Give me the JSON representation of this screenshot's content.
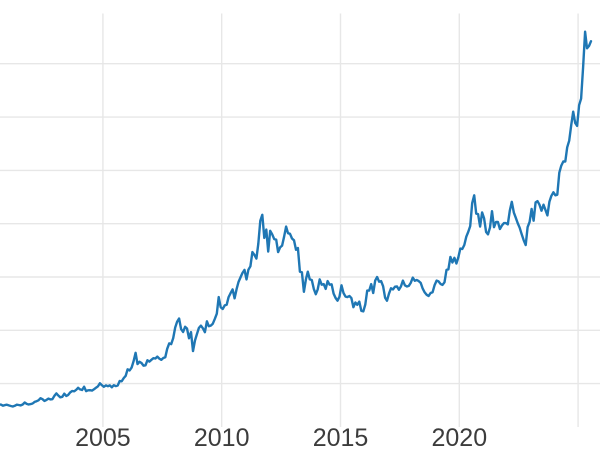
{
  "chart_data": {
    "type": "line",
    "title": "",
    "legend": "none",
    "grid": true,
    "x_axis_range_years": [
      2000.67,
      2025.92
    ],
    "y_axis_range": [
      84,
      3574
    ],
    "x_ticks": [
      {
        "year": 2005,
        "label": "2005"
      },
      {
        "year": 2010,
        "label": "2010"
      },
      {
        "year": 2015,
        "label": "2015"
      },
      {
        "year": 2020,
        "label": "2020"
      }
    ],
    "x_gridline_years": [
      2005,
      2010,
      2015,
      2020,
      2025
    ],
    "y_gridline_values": [
      450,
      900,
      1350,
      1800,
      2250,
      2700,
      3150
    ],
    "series": [
      {
        "name": "",
        "color": "#1f77b4",
        "start_year": 2000,
        "start_month": 8,
        "frequency": "monthly",
        "values": [
          274,
          273,
          264,
          269,
          272,
          266,
          261,
          257,
          263,
          272,
          270,
          266,
          274,
          291,
          279,
          274,
          277,
          282,
          296,
          302,
          309,
          327,
          319,
          304,
          313,
          324,
          317,
          319,
          347,
          368,
          350,
          335,
          339,
          365,
          346,
          355,
          376,
          388,
          385,
          398,
          415,
          401,
          396,
          424,
          387,
          394,
          395,
          391,
          402,
          416,
          427,
          453,
          437,
          423,
          435,
          428,
          435,
          419,
          437,
          429,
          434,
          472,
          470,
          497,
          516,
          571,
          561,
          585,
          640,
          710,
          615,
          634,
          624,
          601,
          605,
          647,
          636,
          651,
          665,
          662,
          678,
          661,
          651,
          666,
          673,
          744,
          790,
          784,
          834,
          924,
          972,
          1000,
          910,
          886,
          930,
          915,
          833,
          885,
          725,
          815,
          870,
          920,
          940,
          917,
          884,
          976,
          935,
          940,
          956,
          996,
          1040,
          1180,
          1095,
          1080,
          1110,
          1116,
          1180,
          1214,
          1245,
          1170,
          1248,
          1308,
          1347,
          1385,
          1410,
          1330,
          1412,
          1440,
          1560,
          1537,
          1505,
          1630,
          1825,
          1875,
          1680,
          1750,
          1565,
          1740,
          1710,
          1670,
          1665,
          1560,
          1600,
          1615,
          1690,
          1775,
          1720,
          1715,
          1675,
          1660,
          1580,
          1595,
          1395,
          1390,
          1225,
          1330,
          1395,
          1330,
          1325,
          1250,
          1205,
          1245,
          1330,
          1285,
          1290,
          1250,
          1315,
          1285,
          1288,
          1210,
          1173,
          1150,
          1185,
          1280,
          1215,
          1185,
          1180,
          1190,
          1172,
          1095,
          1135,
          1115,
          1142,
          1065,
          1060,
          1118,
          1235,
          1235,
          1290,
          1215,
          1320,
          1350,
          1310,
          1315,
          1272,
          1175,
          1150,
          1210,
          1255,
          1245,
          1268,
          1270,
          1242,
          1270,
          1320,
          1280,
          1270,
          1275,
          1302,
          1345,
          1318,
          1325,
          1315,
          1300,
          1252,
          1220,
          1200,
          1190,
          1215,
          1222,
          1282,
          1320,
          1313,
          1292,
          1283,
          1305,
          1410,
          1415,
          1520,
          1472,
          1512,
          1464,
          1515,
          1590,
          1586,
          1620,
          1690,
          1730,
          1780,
          1975,
          2040,
          1885,
          1880,
          1775,
          1895,
          1845,
          1730,
          1710,
          1768,
          1905,
          1770,
          1815,
          1815,
          1755,
          1785,
          1805,
          1805,
          1795,
          1910,
          1985,
          1895,
          1850,
          1805,
          1765,
          1710,
          1660,
          1620,
          1770,
          1815,
          1925,
          1825,
          1980,
          1990,
          1960,
          1910,
          1960,
          1915,
          1870,
          1985,
          2035,
          2065,
          2040,
          2045,
          2230,
          2290,
          2325,
          2325,
          2445,
          2500,
          2630,
          2745,
          2650,
          2625,
          2800,
          2855,
          3120,
          3420,
          3280,
          3300,
          3340
        ]
      }
    ]
  },
  "style": {
    "background_color": "#ffffff",
    "grid_color": "#e7e7e7",
    "line_color": "#1f77b4",
    "tick_label_color": "#3c3c3c"
  }
}
